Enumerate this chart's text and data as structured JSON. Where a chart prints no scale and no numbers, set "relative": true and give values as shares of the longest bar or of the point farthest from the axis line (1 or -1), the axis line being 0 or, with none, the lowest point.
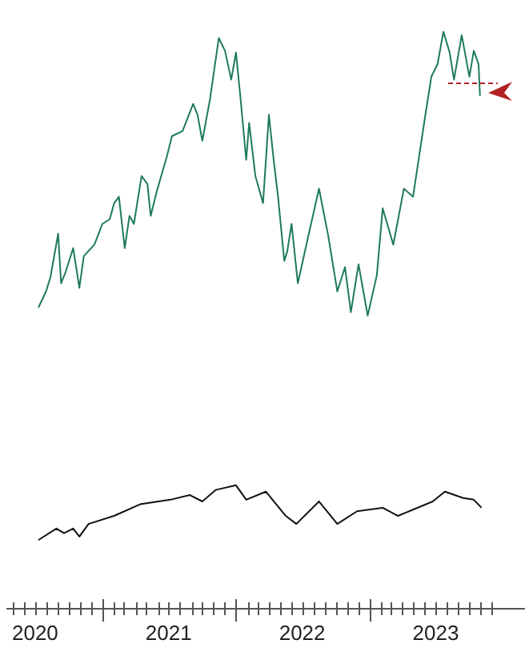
{
  "chart_data": {
    "type": "line",
    "relative": true,
    "xlim": [
      "2020-04-15",
      "2024-03-01"
    ],
    "xticks": [
      {
        "value": "2020-05-01",
        "label": null
      },
      {
        "value": "2020-06-01",
        "label": null
      },
      {
        "value": "2020-07-01",
        "label": "2020"
      },
      {
        "value": "2020-08-01",
        "label": null
      },
      {
        "value": "2020-09-01",
        "label": null
      },
      {
        "value": "2020-10-01",
        "label": null
      },
      {
        "value": "2020-11-01",
        "label": null
      },
      {
        "value": "2020-12-01",
        "label": null
      },
      {
        "value": "2021-01-01",
        "label": null
      },
      {
        "value": "2021-02-01",
        "label": null
      },
      {
        "value": "2021-03-01",
        "label": null
      },
      {
        "value": "2021-04-01",
        "label": null
      },
      {
        "value": "2021-05-01",
        "label": null
      },
      {
        "value": "2021-06-01",
        "label": null
      },
      {
        "value": "2021-07-01",
        "label": "2021"
      },
      {
        "value": "2021-08-01",
        "label": null
      },
      {
        "value": "2021-09-01",
        "label": null
      },
      {
        "value": "2021-10-01",
        "label": null
      },
      {
        "value": "2021-11-01",
        "label": null
      },
      {
        "value": "2021-12-01",
        "label": null
      },
      {
        "value": "2022-01-01",
        "label": null
      },
      {
        "value": "2022-02-01",
        "label": null
      },
      {
        "value": "2022-03-01",
        "label": null
      },
      {
        "value": "2022-04-01",
        "label": null
      },
      {
        "value": "2022-05-01",
        "label": null
      },
      {
        "value": "2022-06-01",
        "label": null
      },
      {
        "value": "2022-07-01",
        "label": "2022"
      },
      {
        "value": "2022-08-01",
        "label": null
      },
      {
        "value": "2022-09-01",
        "label": null
      },
      {
        "value": "2022-10-01",
        "label": null
      },
      {
        "value": "2022-11-01",
        "label": null
      },
      {
        "value": "2022-12-01",
        "label": null
      },
      {
        "value": "2023-01-01",
        "label": null
      },
      {
        "value": "2023-02-01",
        "label": null
      },
      {
        "value": "2023-03-01",
        "label": null
      },
      {
        "value": "2023-04-01",
        "label": null
      },
      {
        "value": "2023-05-01",
        "label": null
      },
      {
        "value": "2023-06-01",
        "label": null
      },
      {
        "value": "2023-07-01",
        "label": "2023"
      },
      {
        "value": "2023-08-01",
        "label": null
      },
      {
        "value": "2023-09-01",
        "label": null
      },
      {
        "value": "2023-10-01",
        "label": null
      },
      {
        "value": "2023-11-01",
        "label": null
      },
      {
        "value": "2023-12-01",
        "label": null
      }
    ],
    "series": [
      {
        "color": "#1f7a5c",
        "x": [
          "2020-07-10",
          "2020-07-31",
          "2020-08-12",
          "2020-09-02",
          "2020-09-10",
          "2020-09-22",
          "2020-10-13",
          "2020-10-30",
          "2020-11-11",
          "2020-12-10",
          "2021-01-01",
          "2021-01-21",
          "2021-02-02",
          "2021-02-15",
          "2021-03-03",
          "2021-03-16",
          "2021-03-28",
          "2021-04-18",
          "2021-05-04",
          "2021-05-13",
          "2021-05-29",
          "2021-06-27",
          "2021-07-10",
          "2021-08-08",
          "2021-09-06",
          "2021-09-18",
          "2021-10-01",
          "2021-10-22",
          "2021-11-15",
          "2021-12-02",
          "2021-12-19",
          "2022-01-01",
          "2022-01-12",
          "2022-01-29",
          "2022-02-06",
          "2022-02-23",
          "2022-03-16",
          "2022-04-01",
          "2022-04-14",
          "2022-04-26",
          "2022-05-13",
          "2022-05-21",
          "2022-06-02",
          "2022-06-19",
          "2022-07-22",
          "2022-08-16",
          "2022-09-10",
          "2022-10-05",
          "2022-10-26",
          "2022-11-11",
          "2022-12-02",
          "2022-12-27",
          "2023-01-21",
          "2023-02-06",
          "2023-03-07",
          "2023-04-05",
          "2023-04-30",
          "2023-05-17",
          "2023-06-02",
          "2023-06-19",
          "2023-07-06",
          "2023-07-22",
          "2023-08-08",
          "2023-08-20",
          "2023-09-10",
          "2023-10-01",
          "2023-10-13",
          "2023-10-26",
          "2023-10-30"
        ],
        "values": [
          0.522,
          0.55,
          0.575,
          0.65,
          0.564,
          0.583,
          0.625,
          0.556,
          0.611,
          0.631,
          0.667,
          0.675,
          0.703,
          0.714,
          0.625,
          0.681,
          0.667,
          0.75,
          0.736,
          0.681,
          0.722,
          0.786,
          0.819,
          0.828,
          0.875,
          0.856,
          0.811,
          0.883,
          0.989,
          0.967,
          0.917,
          0.964,
          0.894,
          0.778,
          0.842,
          0.75,
          0.703,
          0.856,
          0.778,
          0.714,
          0.603,
          0.619,
          0.667,
          0.564,
          0.658,
          0.728,
          0.647,
          0.55,
          0.592,
          0.514,
          0.597,
          0.508,
          0.578,
          0.694,
          0.631,
          0.728,
          0.714,
          0.786,
          0.853,
          0.922,
          0.944,
          1,
          0.964,
          0.917,
          0.994,
          0.922,
          0.967,
          0.944,
          0.889
        ]
      },
      {
        "color": "#111111",
        "x": [
          "2020-07-10",
          "2020-08-28",
          "2020-09-18",
          "2020-10-13",
          "2020-10-30",
          "2020-11-24",
          "2021-02-02",
          "2021-04-14",
          "2021-07-06",
          "2021-08-28",
          "2021-10-01",
          "2021-11-07",
          "2022-01-01",
          "2022-01-29",
          "2022-03-24",
          "2022-05-17",
          "2022-06-15",
          "2022-08-16",
          "2022-10-05",
          "2022-11-28",
          "2023-02-06",
          "2023-03-20",
          "2023-06-23",
          "2023-07-26",
          "2023-09-14",
          "2023-10-13",
          "2023-11-03"
        ],
        "values": [
          0.119,
          0.139,
          0.131,
          0.139,
          0.125,
          0.147,
          0.161,
          0.181,
          0.189,
          0.197,
          0.186,
          0.206,
          0.214,
          0.189,
          0.203,
          0.161,
          0.147,
          0.186,
          0.147,
          0.169,
          0.175,
          0.161,
          0.186,
          0.203,
          0.192,
          0.189,
          0.175
        ]
      }
    ]
  }
}
